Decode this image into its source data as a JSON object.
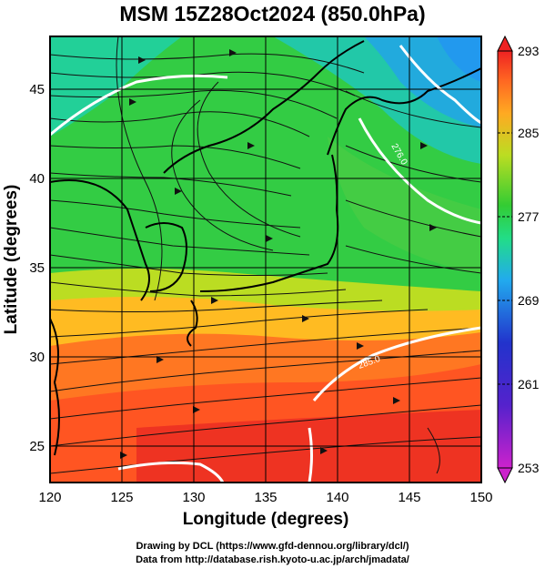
{
  "title": "MSM 15Z28Oct2024 (850.0hPa)",
  "map": {
    "lon_range": [
      120,
      150
    ],
    "lat_range": [
      22.6,
      47.7
    ],
    "x_ticks": [
      "120",
      "125",
      "130",
      "135",
      "140",
      "145",
      "150"
    ],
    "y_ticks": [
      "25",
      "30",
      "35",
      "40",
      "45"
    ],
    "x_axis_label": "Longitude (degrees)",
    "y_axis_label": "Latitude  (degrees)",
    "contour_labels": [
      "285.0",
      "276.0"
    ],
    "features": [
      "temperature-shading",
      "streamlines",
      "coastlines",
      "white-contours",
      "lat-lon-grid"
    ]
  },
  "colorbar": {
    "labels": [
      "293",
      "285",
      "277",
      "269",
      "261",
      "253"
    ],
    "range": [
      253,
      293
    ],
    "colors": [
      "#cc22cc",
      "#2233cc",
      "#22aaee",
      "#22dd88",
      "#33cc33",
      "#bbdd22",
      "#ffaa22",
      "#ff6622",
      "#ee2222"
    ]
  },
  "credits": {
    "line1": "Drawing by DCL (https://www.gfd-dennou.org/library/dcl/)",
    "line2": "Data from http://database.rish.kyoto-u.ac.jp/arch/jmadata/"
  }
}
